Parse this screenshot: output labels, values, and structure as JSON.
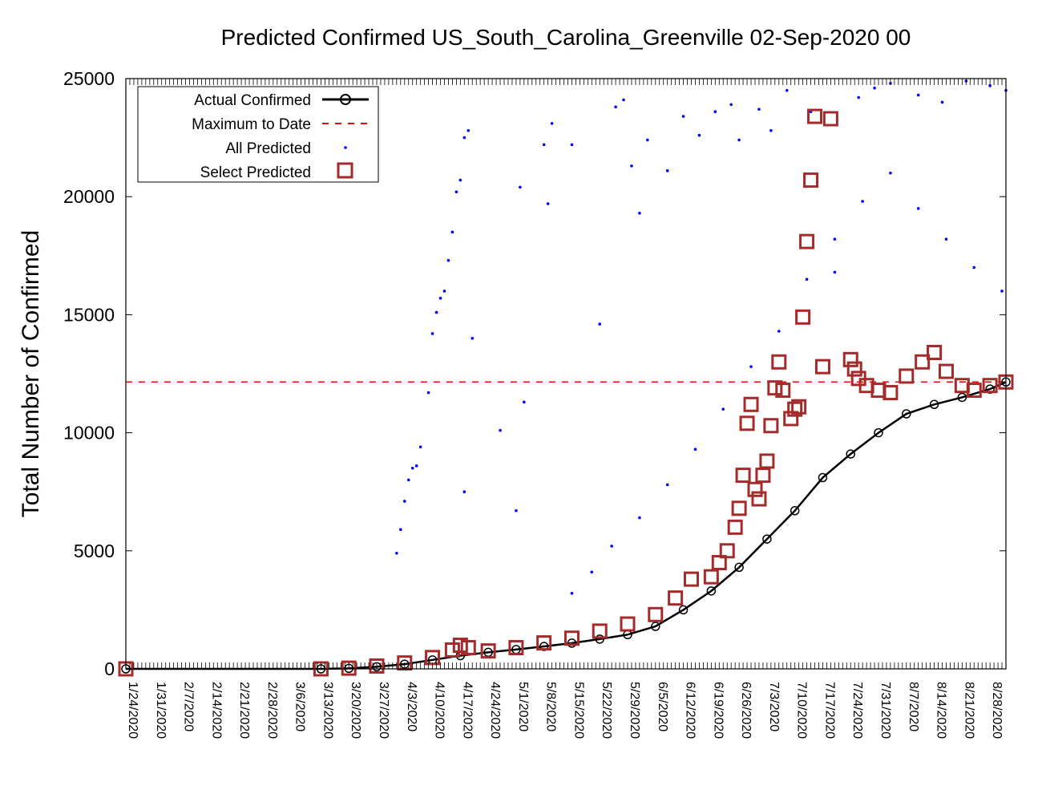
{
  "chart_data": {
    "type": "scatter",
    "title": "Predicted Confirmed US_South_Carolina_Greenville 02-Sep-2020 00",
    "ylabel": "Total Number of Confirmed",
    "xlabel": "",
    "ylim": [
      0,
      25000
    ],
    "yticks": [
      0,
      5000,
      10000,
      15000,
      20000,
      25000
    ],
    "x_start": "1/24/2020",
    "x_end": "9/1/2020",
    "xticks": [
      "1/24/2020",
      "1/31/2020",
      "2/7/2020",
      "2/14/2020",
      "2/21/2020",
      "2/28/2020",
      "3/6/2020",
      "3/13/2020",
      "3/20/2020",
      "3/27/2020",
      "4/3/2020",
      "4/10/2020",
      "4/17/2020",
      "4/24/2020",
      "5/1/2020",
      "5/8/2020",
      "5/15/2020",
      "5/22/2020",
      "5/29/2020",
      "6/5/2020",
      "6/12/2020",
      "6/19/2020",
      "6/26/2020",
      "7/3/2020",
      "7/10/2020",
      "7/17/2020",
      "7/24/2020",
      "7/31/2020",
      "8/7/2020",
      "8/14/2020",
      "8/21/2020",
      "8/28/2020"
    ],
    "legend": {
      "placement": "top-left",
      "entries": [
        "Actual Confirmed",
        "Maximum to Date",
        "All Predicted",
        "Select Predicted"
      ]
    },
    "max_to_date": 12150,
    "colors": {
      "actual": "#000000",
      "max": "#ff0000",
      "all_predicted": "#0000ff",
      "select": "#a52a2a"
    },
    "series": [
      {
        "name": "Actual Confirmed",
        "points": [
          [
            "1/24/2020",
            0
          ],
          [
            "3/13/2020",
            0
          ],
          [
            "3/20/2020",
            20
          ],
          [
            "3/27/2020",
            90
          ],
          [
            "4/3/2020",
            200
          ],
          [
            "4/10/2020",
            380
          ],
          [
            "4/17/2020",
            560
          ],
          [
            "4/24/2020",
            700
          ],
          [
            "5/1/2020",
            820
          ],
          [
            "5/8/2020",
            950
          ],
          [
            "5/15/2020",
            1090
          ],
          [
            "5/22/2020",
            1260
          ],
          [
            "5/29/2020",
            1450
          ],
          [
            "6/5/2020",
            1800
          ],
          [
            "6/12/2020",
            2500
          ],
          [
            "6/19/2020",
            3300
          ],
          [
            "6/26/2020",
            4300
          ],
          [
            "7/3/2020",
            5500
          ],
          [
            "7/10/2020",
            6700
          ],
          [
            "7/17/2020",
            8100
          ],
          [
            "7/24/2020",
            9100
          ],
          [
            "7/31/2020",
            10000
          ],
          [
            "8/7/2020",
            10800
          ],
          [
            "8/14/2020",
            11200
          ],
          [
            "8/21/2020",
            11500
          ],
          [
            "8/28/2020",
            11850
          ],
          [
            "9/1/2020",
            12150
          ]
        ]
      },
      {
        "name": "Select Predicted",
        "points": [
          [
            "1/24/2020",
            0
          ],
          [
            "3/13/2020",
            0
          ],
          [
            "3/20/2020",
            30
          ],
          [
            "3/27/2020",
            120
          ],
          [
            "4/3/2020",
            250
          ],
          [
            "4/10/2020",
            480
          ],
          [
            "4/15/2020",
            800
          ],
          [
            "4/17/2020",
            1000
          ],
          [
            "4/19/2020",
            900
          ],
          [
            "4/24/2020",
            760
          ],
          [
            "5/1/2020",
            900
          ],
          [
            "5/8/2020",
            1100
          ],
          [
            "5/15/2020",
            1300
          ],
          [
            "5/22/2020",
            1600
          ],
          [
            "5/29/2020",
            1900
          ],
          [
            "6/5/2020",
            2300
          ],
          [
            "6/10/2020",
            3000
          ],
          [
            "6/14/2020",
            3800
          ],
          [
            "6/19/2020",
            3900
          ],
          [
            "6/21/2020",
            4500
          ],
          [
            "6/23/2020",
            5000
          ],
          [
            "6/25/2020",
            6000
          ],
          [
            "6/26/2020",
            6800
          ],
          [
            "6/27/2020",
            8200
          ],
          [
            "6/28/2020",
            10400
          ],
          [
            "6/29/2020",
            11200
          ],
          [
            "6/30/2020",
            7600
          ],
          [
            "7/1/2020",
            7200
          ],
          [
            "7/2/2020",
            8200
          ],
          [
            "7/3/2020",
            8800
          ],
          [
            "7/4/2020",
            10300
          ],
          [
            "7/5/2020",
            11900
          ],
          [
            "7/6/2020",
            13000
          ],
          [
            "7/7/2020",
            11800
          ],
          [
            "7/9/2020",
            10600
          ],
          [
            "7/10/2020",
            11000
          ],
          [
            "7/11/2020",
            11100
          ],
          [
            "7/12/2020",
            14900
          ],
          [
            "7/13/2020",
            18100
          ],
          [
            "7/14/2020",
            20700
          ],
          [
            "7/15/2020",
            23400
          ],
          [
            "7/17/2020",
            12800
          ],
          [
            "7/19/2020",
            23300
          ],
          [
            "7/24/2020",
            13100
          ],
          [
            "7/25/2020",
            12700
          ],
          [
            "7/26/2020",
            12300
          ],
          [
            "7/28/2020",
            12000
          ],
          [
            "7/31/2020",
            11800
          ],
          [
            "8/3/2020",
            11700
          ],
          [
            "8/7/2020",
            12400
          ],
          [
            "8/11/2020",
            13000
          ],
          [
            "8/14/2020",
            13400
          ],
          [
            "8/17/2020",
            12600
          ],
          [
            "8/21/2020",
            12000
          ],
          [
            "8/24/2020",
            11800
          ],
          [
            "8/28/2020",
            12000
          ],
          [
            "9/1/2020",
            12150
          ]
        ]
      },
      {
        "name": "All Predicted",
        "points": [
          [
            "4/1/2020",
            4900
          ],
          [
            "4/2/2020",
            5900
          ],
          [
            "4/3/2020",
            7100
          ],
          [
            "4/4/2020",
            8000
          ],
          [
            "4/5/2020",
            8500
          ],
          [
            "4/6/2020",
            8600
          ],
          [
            "4/7/2020",
            9400
          ],
          [
            "4/9/2020",
            11700
          ],
          [
            "4/10/2020",
            14200
          ],
          [
            "4/11/2020",
            15100
          ],
          [
            "4/12/2020",
            15700
          ],
          [
            "4/13/2020",
            16000
          ],
          [
            "4/14/2020",
            17300
          ],
          [
            "4/15/2020",
            18500
          ],
          [
            "4/16/2020",
            20200
          ],
          [
            "4/17/2020",
            20700
          ],
          [
            "4/18/2020",
            22500
          ],
          [
            "4/19/2020",
            22800
          ],
          [
            "4/20/2020",
            14000
          ],
          [
            "4/18/2020",
            7500
          ],
          [
            "4/27/2020",
            10100
          ],
          [
            "5/1/2020",
            6700
          ],
          [
            "5/2/2020",
            20400
          ],
          [
            "5/3/2020",
            11300
          ],
          [
            "5/8/2020",
            22200
          ],
          [
            "5/9/2020",
            19700
          ],
          [
            "5/10/2020",
            23100
          ],
          [
            "5/15/2020",
            22200
          ],
          [
            "5/22/2020",
            14600
          ],
          [
            "5/26/2020",
            23800
          ],
          [
            "5/28/2020",
            24100
          ],
          [
            "5/30/2020",
            21300
          ],
          [
            "6/1/2020",
            19300
          ],
          [
            "6/3/2020",
            22400
          ],
          [
            "6/8/2020",
            21100
          ],
          [
            "6/12/2020",
            23400
          ],
          [
            "6/16/2020",
            22600
          ],
          [
            "6/20/2020",
            23600
          ],
          [
            "6/24/2020",
            23900
          ],
          [
            "6/26/2020",
            22400
          ],
          [
            "7/1/2020",
            23700
          ],
          [
            "7/4/2020",
            22800
          ],
          [
            "7/8/2020",
            24500
          ],
          [
            "7/14/2020",
            23600
          ],
          [
            "7/20/2020",
            16800
          ],
          [
            "7/26/2020",
            24200
          ],
          [
            "7/30/2020",
            24600
          ],
          [
            "8/3/2020",
            24800
          ],
          [
            "8/10/2020",
            24300
          ],
          [
            "8/16/2020",
            24000
          ],
          [
            "8/22/2020",
            24900
          ],
          [
            "8/28/2020",
            24700
          ],
          [
            "9/1/2020",
            24500
          ],
          [
            "5/15/2020",
            3200
          ],
          [
            "5/20/2020",
            4100
          ],
          [
            "5/25/2020",
            5200
          ],
          [
            "6/1/2020",
            6400
          ],
          [
            "6/8/2020",
            7800
          ],
          [
            "6/15/2020",
            9300
          ],
          [
            "6/22/2020",
            11000
          ],
          [
            "6/29/2020",
            12800
          ],
          [
            "7/6/2020",
            14300
          ],
          [
            "7/13/2020",
            16500
          ],
          [
            "7/20/2020",
            18200
          ],
          [
            "7/27/2020",
            19800
          ],
          [
            "8/3/2020",
            21000
          ],
          [
            "8/10/2020",
            19500
          ],
          [
            "8/17/2020",
            18200
          ],
          [
            "8/24/2020",
            17000
          ],
          [
            "8/31/2020",
            16000
          ]
        ]
      }
    ]
  }
}
